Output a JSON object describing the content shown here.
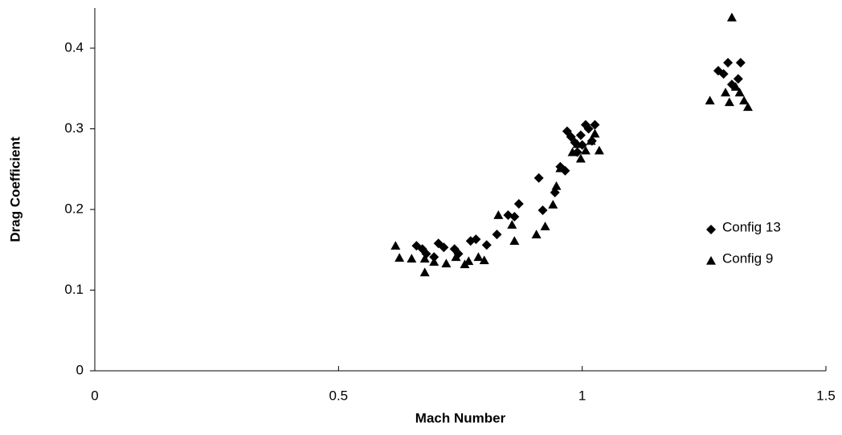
{
  "chart_data": {
    "type": "scatter",
    "x_label": "Mach Number",
    "y_label": "Drag Coefficient",
    "xlim": [
      0,
      1.5
    ],
    "ylim": [
      0,
      0.4
    ],
    "xticks": [
      0,
      0.5,
      1,
      1.5
    ],
    "yticks": [
      0,
      0.1,
      0.2,
      0.3,
      0.4
    ],
    "grid": false,
    "legend": "right",
    "series": [
      {
        "name": "Config 13",
        "color": "#000000",
        "marker": "diamond",
        "x": [
          0.66,
          0.672,
          0.68,
          0.696,
          0.705,
          0.716,
          0.738,
          0.746,
          0.771,
          0.782,
          0.804,
          0.825,
          0.848,
          0.861,
          0.87,
          0.911,
          0.919,
          0.944,
          0.955,
          0.965,
          0.969,
          0.977,
          0.985,
          0.99,
          0.997,
          1.0,
          1.007,
          1.013,
          1.02,
          1.026,
          1.279,
          1.29,
          1.299,
          1.307,
          1.32,
          1.325
        ],
        "values": [
          0.155,
          0.151,
          0.145,
          0.141,
          0.158,
          0.153,
          0.151,
          0.145,
          0.161,
          0.163,
          0.156,
          0.169,
          0.193,
          0.191,
          0.207,
          0.239,
          0.199,
          0.221,
          0.253,
          0.248,
          0.297,
          0.29,
          0.283,
          0.271,
          0.292,
          0.28,
          0.305,
          0.3,
          0.285,
          0.305,
          0.372,
          0.368,
          0.382,
          0.355,
          0.362,
          0.382
        ]
      },
      {
        "name": "Config 9",
        "color": "#000000",
        "marker": "triangle",
        "x": [
          0.617,
          0.625,
          0.65,
          0.677,
          0.677,
          0.696,
          0.721,
          0.741,
          0.759,
          0.767,
          0.787,
          0.799,
          0.828,
          0.856,
          0.861,
          0.906,
          0.924,
          0.94,
          0.947,
          0.955,
          0.98,
          0.99,
          0.997,
          1.007,
          1.018,
          1.026,
          1.035,
          1.262,
          1.294,
          1.302,
          1.307,
          1.315,
          1.323,
          1.332,
          1.34
        ],
        "values": [
          0.155,
          0.14,
          0.139,
          0.139,
          0.122,
          0.135,
          0.133,
          0.141,
          0.132,
          0.136,
          0.141,
          0.137,
          0.193,
          0.181,
          0.161,
          0.169,
          0.179,
          0.206,
          0.229,
          0.251,
          0.271,
          0.281,
          0.263,
          0.273,
          0.285,
          0.294,
          0.273,
          0.335,
          0.345,
          0.333,
          0.438,
          0.352,
          0.345,
          0.335,
          0.327
        ]
      }
    ]
  }
}
